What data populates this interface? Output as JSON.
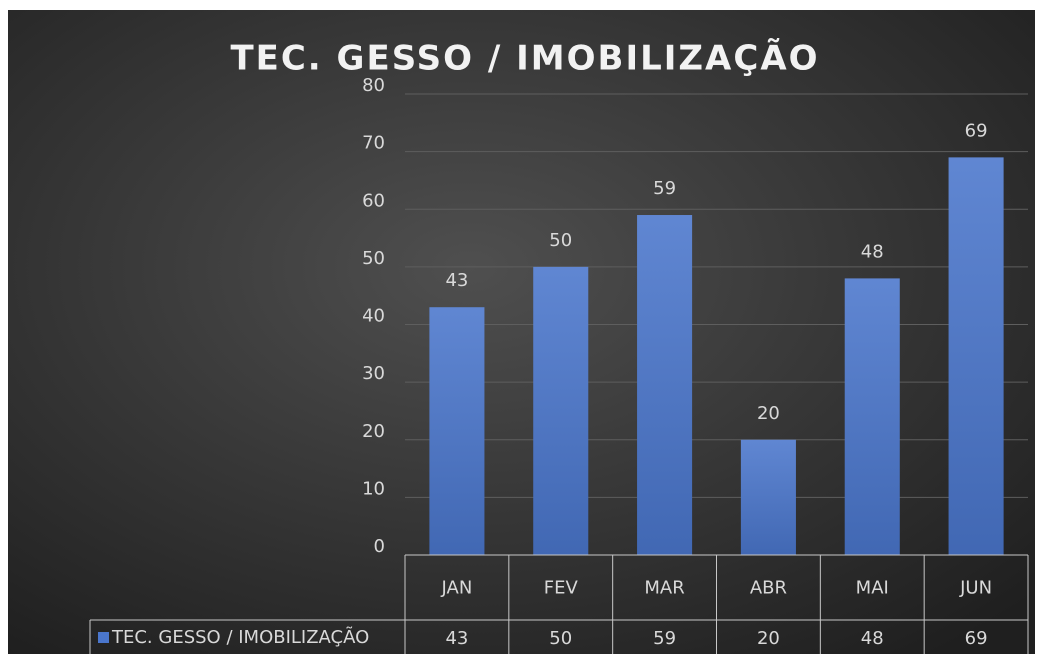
{
  "chart_data": {
    "type": "bar",
    "title": "TEC. GESSO / IMOBILIZAÇÃO",
    "categories": [
      "JAN",
      "FEV",
      "MAR",
      "ABR",
      "MAI",
      "JUN"
    ],
    "series": [
      {
        "name": "TEC. GESSO / IMOBILIZAÇÃO",
        "color": "#4a76cc",
        "values": [
          43,
          50,
          59,
          20,
          48,
          69
        ]
      }
    ],
    "ylim": [
      0,
      80
    ],
    "yticks": [
      0,
      10,
      20,
      30,
      40,
      50,
      60,
      70,
      80
    ],
    "grid": true,
    "data_table": true
  }
}
